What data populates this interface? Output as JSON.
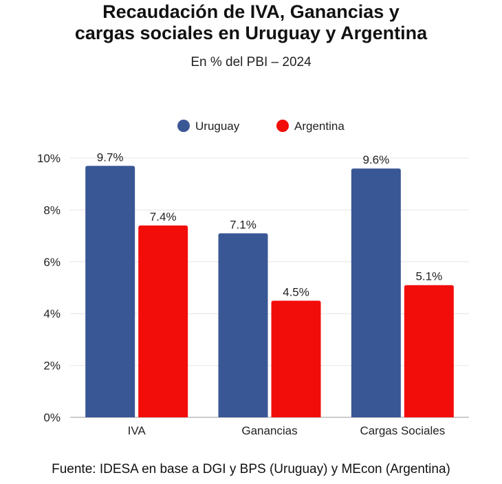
{
  "chart_data": {
    "type": "bar",
    "title": "Recaudación de IVA, Ganancias y cargas sociales en Uruguay y Argentina",
    "title_lines": [
      "Recaudación de IVA, Ganancias y",
      "cargas sociales en Uruguay y Argentina"
    ],
    "subtitle": "En % del PBI – 2024",
    "categories": [
      "IVA",
      "Ganancias",
      "Cargas Sociales"
    ],
    "series": [
      {
        "name": "Uruguay",
        "color": "#3A5795",
        "values": [
          9.7,
          7.1,
          9.6
        ],
        "labels": [
          "9.7%",
          "7.1%",
          "9.6%"
        ]
      },
      {
        "name": "Argentina",
        "color": "#F20D0A",
        "values": [
          7.4,
          4.5,
          5.1
        ],
        "labels": [
          "7.4%",
          "4.5%",
          "5.1%"
        ]
      }
    ],
    "yticks": [
      0,
      2,
      4,
      6,
      8,
      10
    ],
    "ytick_labels": [
      "0%",
      "2%",
      "4%",
      "6%",
      "8%",
      "10%"
    ],
    "ylim": [
      0,
      10
    ],
    "xlabel": "",
    "ylabel": "",
    "grid": true,
    "legend": "top-center",
    "source": "Fuente: IDESA en base a DGI y BPS (Uruguay) y MEcon (Argentina)"
  }
}
